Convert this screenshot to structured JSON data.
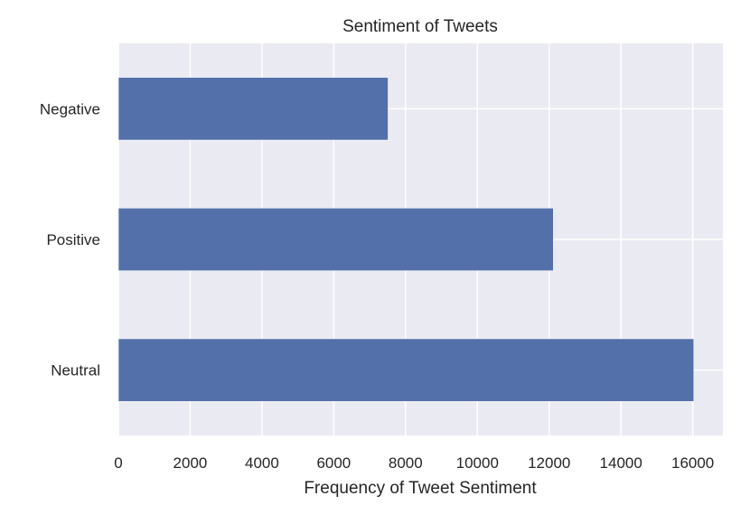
{
  "chart_data": {
    "type": "bar",
    "orientation": "horizontal",
    "title": "Sentiment of Tweets",
    "xlabel": "Frequency of Tweet Sentiment",
    "ylabel": "",
    "categories": [
      "Negative",
      "Positive",
      "Neutral"
    ],
    "values": [
      7514,
      12118,
      16030
    ],
    "xlim": [
      0,
      16840
    ],
    "xticks": [
      0,
      2000,
      4000,
      6000,
      8000,
      10000,
      12000,
      14000,
      16000
    ],
    "grid": true,
    "legend": "none",
    "colors": {
      "bar": "#5470aa",
      "plot_background": "#eaeaf2",
      "grid": "#ffffff"
    }
  }
}
